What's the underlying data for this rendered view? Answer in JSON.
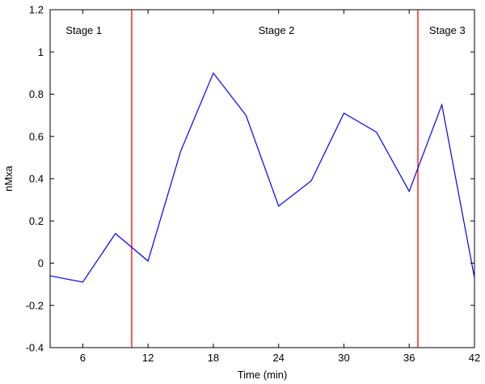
{
  "chart_data": {
    "type": "line",
    "xlabel": "Time (min)",
    "ylabel": "nMxa",
    "xlim": [
      3,
      42
    ],
    "ylim": [
      -0.4,
      1.2
    ],
    "xticks": [
      6,
      12,
      18,
      24,
      30,
      36,
      42
    ],
    "xtick_labels": [
      "6",
      "12",
      "18",
      "24",
      "30",
      "36",
      "42"
    ],
    "yticks": [
      -0.4,
      -0.2,
      0,
      0.2,
      0.4,
      0.6,
      0.8,
      1,
      1.2
    ],
    "ytick_labels": [
      "-0.4",
      "-0.2",
      "0",
      "0.2",
      "0.4",
      "0.6",
      "0.8",
      "1",
      "1.2"
    ],
    "grid": false,
    "series": [
      {
        "color": "#0000ff",
        "x": [
          3,
          6,
          9,
          12,
          15,
          18,
          21,
          24,
          27,
          30,
          33,
          36,
          39,
          42
        ],
        "y": [
          -0.06,
          -0.09,
          0.14,
          0.01,
          0.53,
          0.9,
          0.7,
          0.27,
          0.39,
          0.71,
          0.62,
          0.34,
          0.75,
          -0.07
        ]
      }
    ],
    "vertical_lines": [
      {
        "x": 10.5,
        "color": "#ff0000"
      },
      {
        "x": 36.8,
        "color": "#ff0000"
      }
    ],
    "annotations": [
      {
        "text": "Stage 1",
        "x": 6.1
      },
      {
        "text": "Stage 2",
        "x": 23.8
      },
      {
        "text": "Stage 3",
        "x": 39.5
      }
    ]
  }
}
